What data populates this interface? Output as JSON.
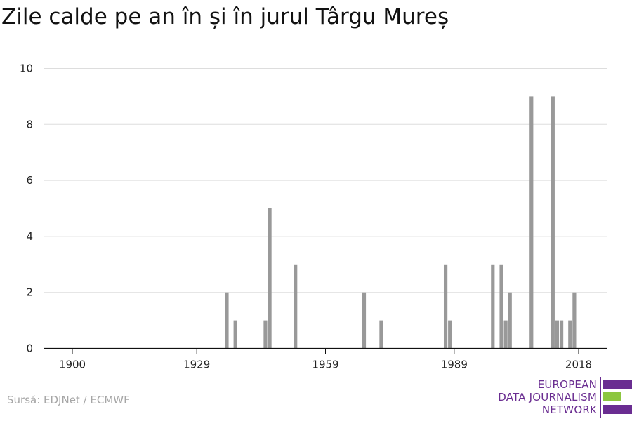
{
  "title": "Zile calde pe an în și în jurul Târgu Mureș",
  "source": "Sursă: EDJNet / ECMWF",
  "logo": {
    "lines": [
      "EUROPEAN",
      "DATA JOURNALISM",
      "NETWORK"
    ],
    "colors": {
      "purple": "#6a2d91",
      "green": "#8cc63f"
    }
  },
  "chart_data": {
    "type": "bar",
    "xlim": [
      1900,
      2018
    ],
    "ylim": [
      0,
      10
    ],
    "xticks": [
      1900,
      1929,
      1959,
      1989,
      2018
    ],
    "yticks": [
      0,
      2,
      4,
      6,
      8,
      10
    ],
    "bar_color": "#999999",
    "grid": true,
    "x": [
      1936,
      1938,
      1945,
      1946,
      1952,
      1968,
      1972,
      1987,
      1988,
      1998,
      2000,
      2001,
      2002,
      2007,
      2012,
      2013,
      2014,
      2016,
      2017
    ],
    "values": [
      2,
      1,
      1,
      5,
      3,
      2,
      1,
      3,
      1,
      3,
      3,
      1,
      2,
      9,
      9,
      1,
      1,
      1,
      2
    ]
  }
}
